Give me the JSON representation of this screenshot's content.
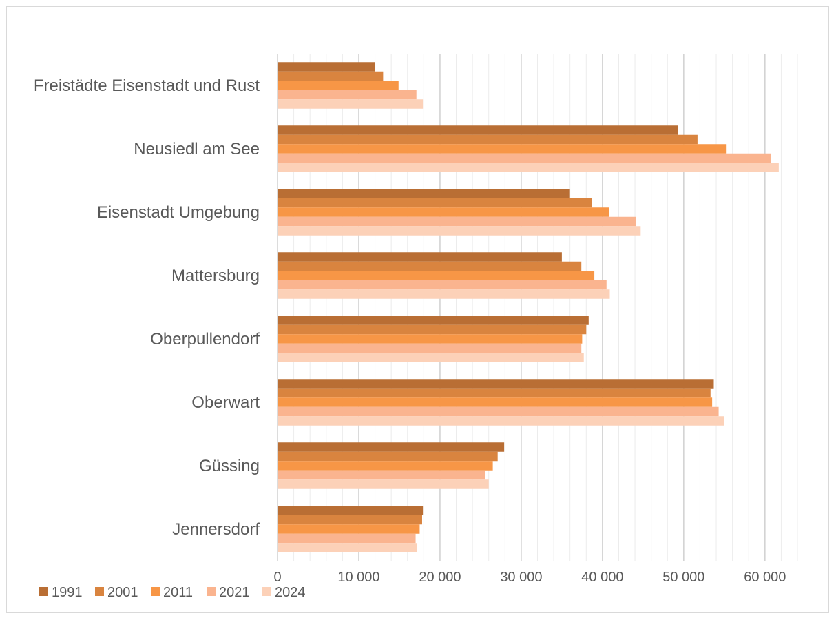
{
  "chart_data": {
    "type": "bar",
    "orientation": "horizontal",
    "categories": [
      "Freistädte Eisenstadt und Rust",
      "Neusiedl am See",
      "Eisenstadt Umgebung",
      "Mattersburg",
      "Oberpullendorf",
      "Oberwart",
      "Güssing",
      "Jennersdorf"
    ],
    "series": [
      {
        "name": "1991",
        "color": "#b96e34",
        "values": [
          12000,
          49300,
          36000,
          35000,
          38300,
          53700,
          27900,
          17900
        ]
      },
      {
        "name": "2001",
        "color": "#d9843f",
        "values": [
          13000,
          51700,
          38700,
          37400,
          38000,
          53300,
          27100,
          17800
        ]
      },
      {
        "name": "2011",
        "color": "#f79646",
        "values": [
          14900,
          55200,
          40800,
          39000,
          37500,
          53500,
          26500,
          17500
        ]
      },
      {
        "name": "2021",
        "color": "#fab48f",
        "values": [
          17100,
          60700,
          44100,
          40500,
          37400,
          54300,
          25600,
          17000
        ]
      },
      {
        "name": "2024",
        "color": "#fcd1b8",
        "values": [
          17900,
          61700,
          44700,
          40900,
          37700,
          55000,
          26000,
          17200
        ]
      }
    ],
    "xlim": [
      0,
      64000
    ],
    "major_ticks": [
      0,
      10000,
      20000,
      30000,
      40000,
      50000,
      60000
    ],
    "tick_labels": [
      "0",
      "10 000",
      "20 000",
      "30 000",
      "40 000",
      "50 000",
      "60 000"
    ],
    "minor_tick_step": 2000,
    "grid": true,
    "legend": "bottom-left",
    "title": "",
    "xlabel": "",
    "ylabel": ""
  }
}
